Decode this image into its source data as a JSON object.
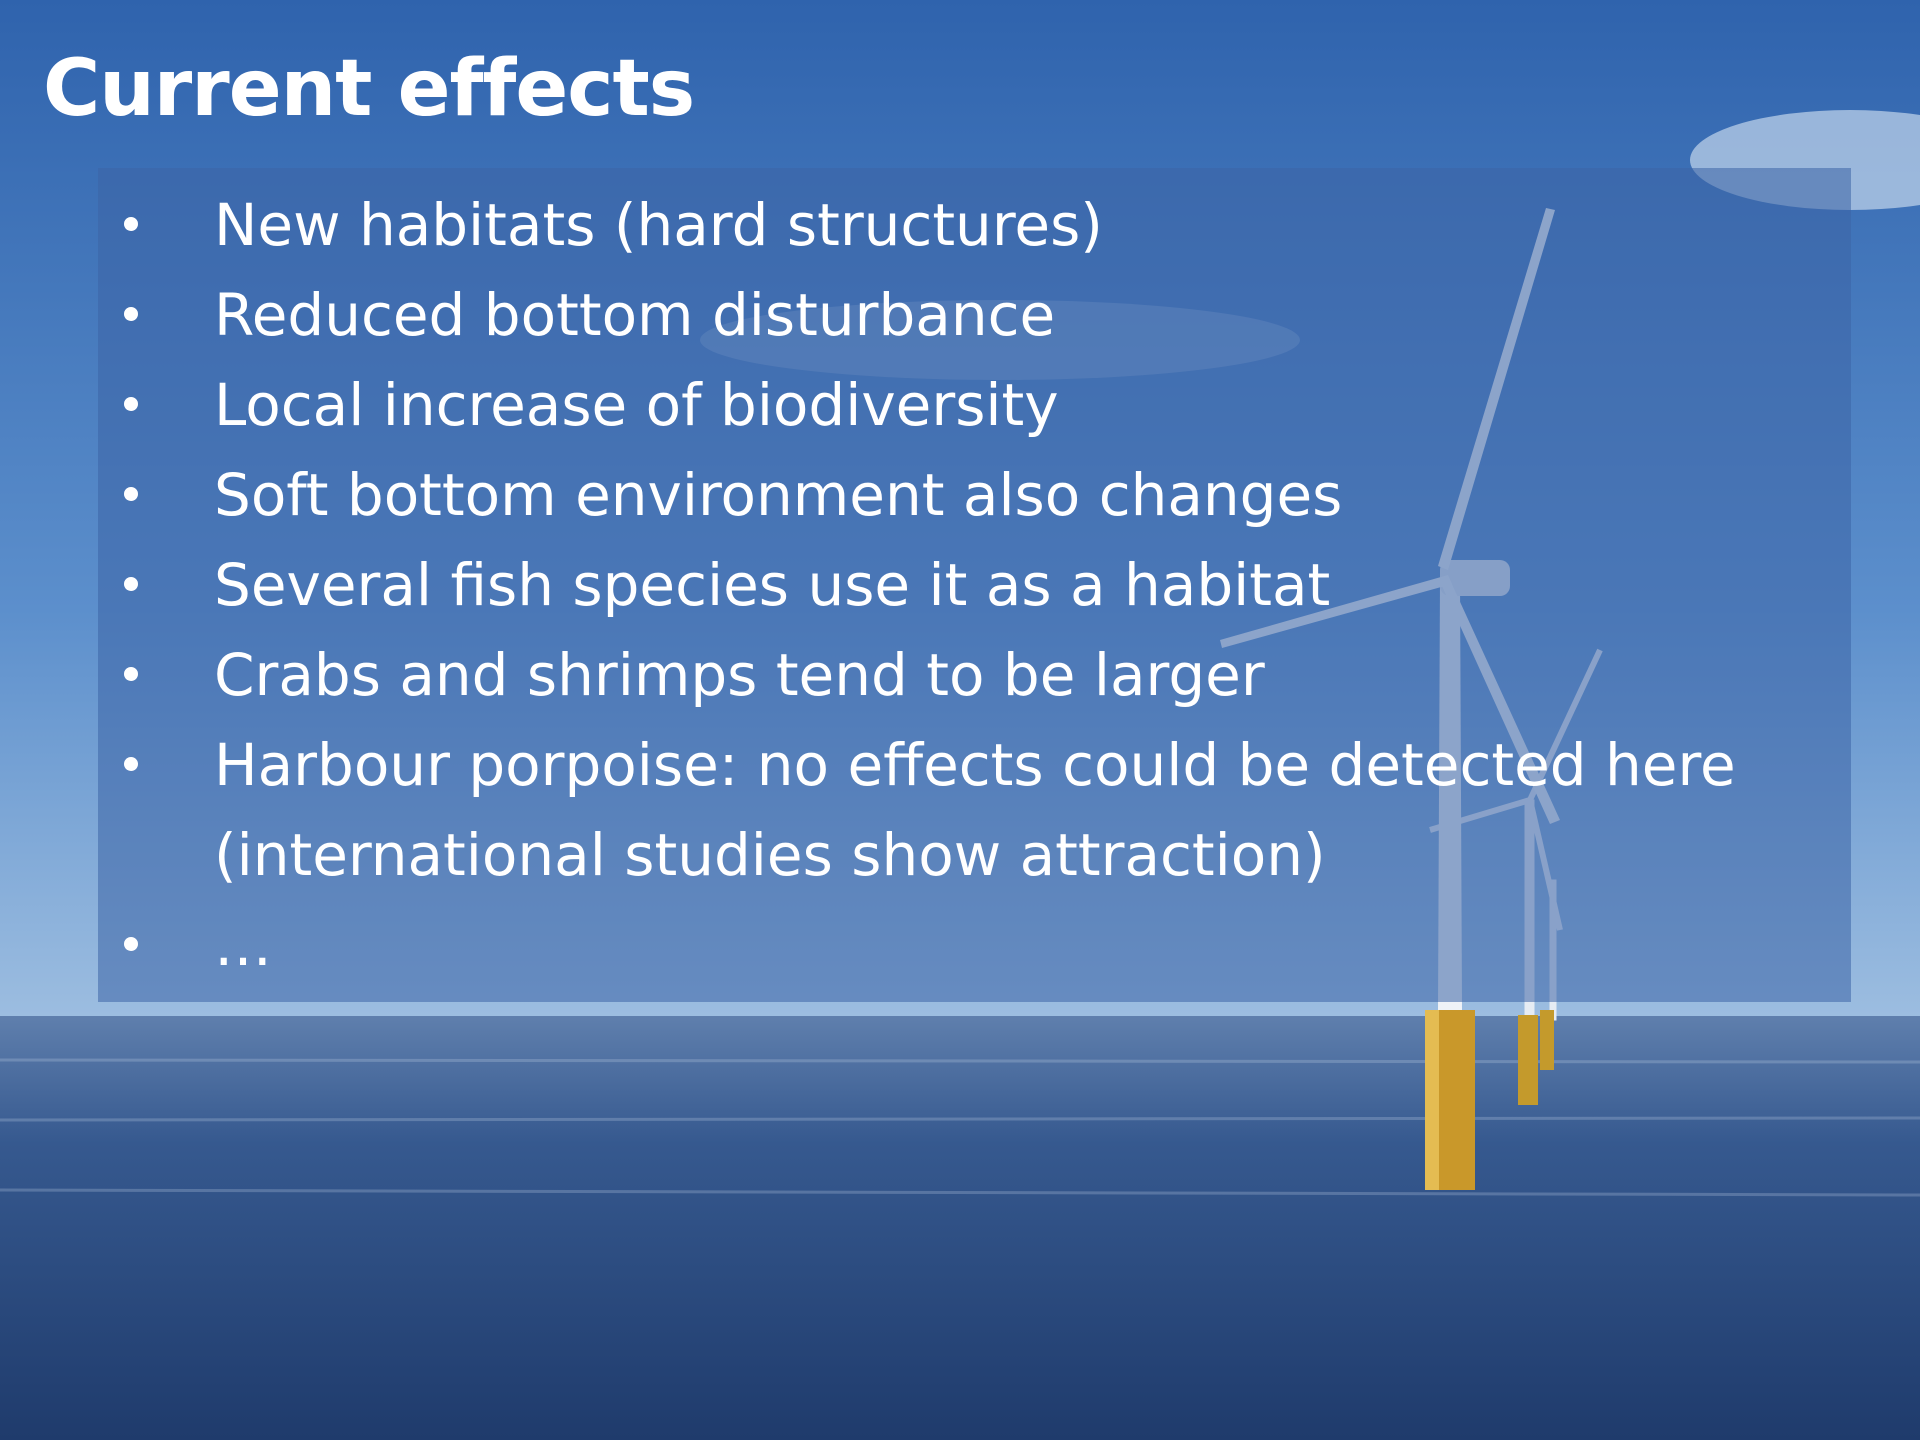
{
  "title": "Current effects",
  "bullets": [
    "New habitats (hard structures)",
    "Reduced bottom disturbance",
    "Local increase of biodiversity",
    "Soft bottom environment also changes",
    "Several fish species use it as a habitat",
    "Crabs and shrimps tend to be larger",
    "Harbour porpoise: no effects could be detected here (international studies show attraction)",
    "…"
  ]
}
